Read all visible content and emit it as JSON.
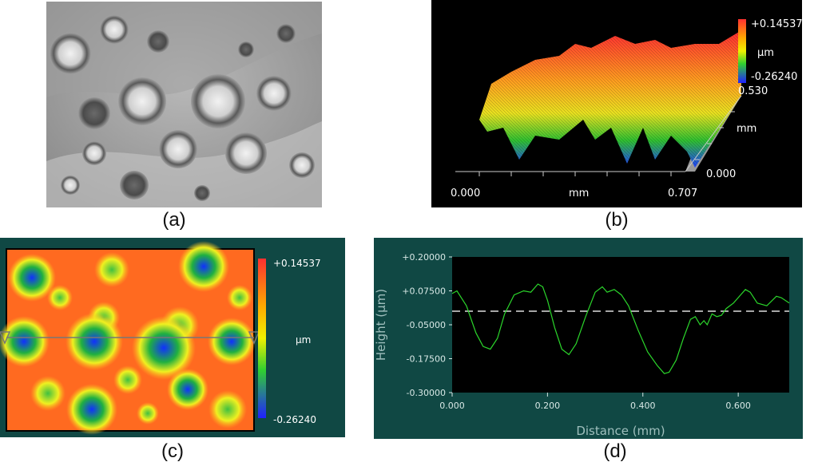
{
  "panels": [
    {
      "id": "a",
      "caption": "(a)"
    },
    {
      "id": "b",
      "caption": "(b)"
    },
    {
      "id": "c",
      "caption": "(c)"
    },
    {
      "id": "d",
      "caption": "(d)"
    }
  ],
  "surface3d": {
    "colorbar_max": "+0.14537",
    "colorbar_unit": "µm",
    "colorbar_min": "-0.26240",
    "y_max": "0.530",
    "y_unit": "mm",
    "y_min": "0.000",
    "x_min": "0.000",
    "x_unit": "mm",
    "x_max": "0.707"
  },
  "heightmap": {
    "colorbar_max": "+0.14537",
    "colorbar_unit": "µm",
    "colorbar_min": "-0.26240"
  },
  "profile": {
    "y_ticks": [
      "+0.20000",
      "+0.07500",
      "-0.05000",
      "-0.17500",
      "-0.30000"
    ],
    "x_ticks": [
      "0.000",
      "0.200",
      "0.400",
      "0.600"
    ],
    "xlabel": "Distance (mm)",
    "ylabel": "Height (µm)"
  },
  "chart_data": {
    "type": "line",
    "xlabel": "Distance (mm)",
    "ylabel": "Height (µm)",
    "xlim": [
      0,
      0.707
    ],
    "ylim": [
      -0.3,
      0.2
    ],
    "grid": false,
    "reference_line_y": 0.0,
    "series": [
      {
        "color": "#2bd62b",
        "x": [
          0.0,
          0.01,
          0.03,
          0.05,
          0.065,
          0.08,
          0.095,
          0.11,
          0.13,
          0.15,
          0.165,
          0.18,
          0.19,
          0.2,
          0.215,
          0.23,
          0.245,
          0.26,
          0.28,
          0.3,
          0.315,
          0.325,
          0.34,
          0.355,
          0.37,
          0.39,
          0.41,
          0.43,
          0.445,
          0.455,
          0.47,
          0.485,
          0.5,
          0.51,
          0.52,
          0.528,
          0.535,
          0.545,
          0.555,
          0.565,
          0.575,
          0.59,
          0.605,
          0.615,
          0.625,
          0.64,
          0.66,
          0.68,
          0.69,
          0.707
        ],
        "y": [
          0.065,
          0.075,
          0.02,
          -0.08,
          -0.13,
          -0.14,
          -0.1,
          -0.01,
          0.06,
          0.075,
          0.07,
          0.1,
          0.09,
          0.04,
          -0.06,
          -0.14,
          -0.16,
          -0.12,
          -0.02,
          0.07,
          0.09,
          0.07,
          0.08,
          0.06,
          0.02,
          -0.07,
          -0.15,
          -0.2,
          -0.23,
          -0.225,
          -0.18,
          -0.1,
          -0.03,
          -0.02,
          -0.05,
          -0.035,
          -0.05,
          -0.01,
          -0.02,
          -0.015,
          0.01,
          0.03,
          0.06,
          0.08,
          0.07,
          0.03,
          0.02,
          0.055,
          0.05,
          0.03
        ]
      }
    ]
  }
}
